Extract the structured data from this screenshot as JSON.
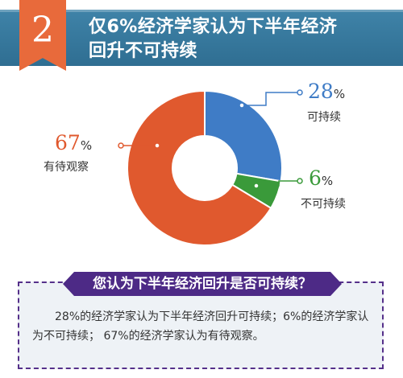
{
  "header": {
    "number": "2",
    "title_line1": "仅6%经济学家认为下半年经济",
    "title_line2": "回升不可持续"
  },
  "chart_data": {
    "type": "pie",
    "variant": "donut",
    "slices": [
      {
        "label": "可持续",
        "value": 28,
        "display": "28",
        "color": "#3f7cc6",
        "leader_color": "#3f7cc6",
        "text_color": "#3f7cc6"
      },
      {
        "label": "不可持续",
        "value": 6,
        "display": "6",
        "color": "#3a9a3a",
        "leader_color": "#3a9a3a",
        "text_color": "#3a9a3a"
      },
      {
        "label": "有待观察",
        "value": 67,
        "display": "67",
        "color": "#e0592e",
        "leader_color": "#e0592e",
        "text_color": "#e0592e"
      }
    ],
    "unit": "%"
  },
  "question": "您认为下半年经济回升是否可持续？",
  "description": "28%的经济学家认为下半年经济回升可持续；6%的经济学家认为不可持续； 67%的经济学家认为有待观察。"
}
